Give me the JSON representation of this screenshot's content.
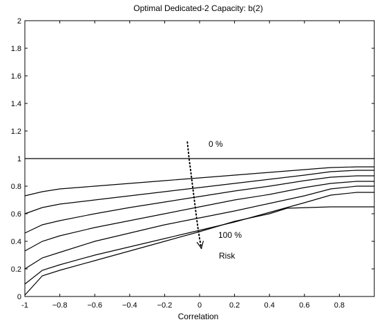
{
  "chart_data": {
    "type": "line",
    "title": "Optimal Dedicated-2 Capacity: b(2)",
    "xlabel": "Correlation",
    "ylabel": "",
    "xlim": [
      -1,
      1
    ],
    "ylim": [
      0,
      2
    ],
    "xticks": [
      -1,
      -0.8,
      -0.6,
      -0.4,
      -0.2,
      0,
      0.2,
      0.4,
      0.6,
      0.8
    ],
    "xtick_labels": [
      "-1",
      "−0.8",
      "−0.6",
      "−0.4",
      "−0.2",
      "0",
      "0.2",
      "0.4",
      "0.6",
      "0.8"
    ],
    "yticks": [
      0,
      0.2,
      0.4,
      0.6,
      0.8,
      1,
      1.2,
      1.4,
      1.6,
      1.8,
      2
    ],
    "ytick_labels": [
      "0",
      "0.2",
      "0.4",
      "0.6",
      "0.8",
      "1",
      "1.2",
      "1.4",
      "1.6",
      "1.8",
      "2"
    ],
    "grid": false,
    "legend": null,
    "series": [
      {
        "x": [
          -1,
          -0.9,
          -0.8,
          -0.6,
          -0.4,
          -0.2,
          0,
          0.2,
          0.4,
          0.6,
          0.75,
          0.9,
          1
        ],
        "values": [
          1.0,
          1.0,
          1.0,
          1.0,
          1.0,
          1.0,
          1.0,
          1.0,
          1.0,
          1.0,
          1.0,
          1.0,
          1.0
        ]
      },
      {
        "x": [
          -1,
          -0.9,
          -0.8,
          -0.6,
          -0.4,
          -0.2,
          0,
          0.2,
          0.4,
          0.6,
          0.75,
          0.9,
          1
        ],
        "values": [
          0.73,
          0.76,
          0.78,
          0.8,
          0.82,
          0.84,
          0.86,
          0.88,
          0.9,
          0.92,
          0.935,
          0.94,
          0.94
        ]
      },
      {
        "x": [
          -1,
          -0.9,
          -0.8,
          -0.6,
          -0.4,
          -0.2,
          0,
          0.2,
          0.4,
          0.6,
          0.75,
          0.9,
          1
        ],
        "values": [
          0.6,
          0.645,
          0.67,
          0.7,
          0.73,
          0.76,
          0.79,
          0.82,
          0.85,
          0.88,
          0.905,
          0.915,
          0.915
        ]
      },
      {
        "x": [
          -1,
          -0.9,
          -0.8,
          -0.6,
          -0.4,
          -0.2,
          0,
          0.2,
          0.4,
          0.6,
          0.75,
          0.9,
          1
        ],
        "values": [
          0.46,
          0.52,
          0.55,
          0.6,
          0.645,
          0.685,
          0.725,
          0.765,
          0.8,
          0.84,
          0.865,
          0.875,
          0.875
        ]
      },
      {
        "x": [
          -1,
          -0.9,
          -0.8,
          -0.6,
          -0.4,
          -0.2,
          0,
          0.2,
          0.4,
          0.6,
          0.75,
          0.9,
          1
        ],
        "values": [
          0.33,
          0.4,
          0.44,
          0.5,
          0.55,
          0.6,
          0.65,
          0.7,
          0.74,
          0.79,
          0.82,
          0.835,
          0.835
        ]
      },
      {
        "x": [
          -1,
          -0.9,
          -0.8,
          -0.6,
          -0.4,
          -0.2,
          0,
          0.2,
          0.4,
          0.6,
          0.75,
          0.9,
          1
        ],
        "values": [
          0.2,
          0.28,
          0.32,
          0.4,
          0.46,
          0.52,
          0.57,
          0.62,
          0.675,
          0.73,
          0.78,
          0.8,
          0.8
        ]
      },
      {
        "x": [
          -1,
          -0.9,
          -0.8,
          -0.6,
          -0.4,
          -0.2,
          0,
          0.2,
          0.4,
          0.6,
          0.75,
          0.9,
          1
        ],
        "values": [
          0.09,
          0.19,
          0.23,
          0.3,
          0.36,
          0.42,
          0.48,
          0.54,
          0.61,
          0.68,
          0.735,
          0.755,
          0.755
        ]
      },
      {
        "x": [
          -1,
          -0.9,
          -0.8,
          -0.6,
          -0.4,
          -0.2,
          0,
          0.2,
          0.4,
          0.5,
          0.75,
          0.9,
          1
        ],
        "values": [
          0.01,
          0.15,
          0.19,
          0.26,
          0.33,
          0.4,
          0.47,
          0.545,
          0.6,
          0.64,
          0.65,
          0.65,
          0.65
        ]
      }
    ],
    "annotations": [
      {
        "text": "0 %"
      },
      {
        "text": "100 %"
      },
      {
        "text": "Risk"
      }
    ],
    "risk_arrow": {
      "x": [
        -0.07,
        -0.06,
        -0.05,
        -0.04,
        -0.03,
        -0.02,
        -0.01,
        0.0,
        0.01
      ],
      "y": [
        1.12,
        1.0,
        0.9,
        0.8,
        0.7,
        0.6,
        0.5,
        0.42,
        0.35
      ]
    }
  }
}
